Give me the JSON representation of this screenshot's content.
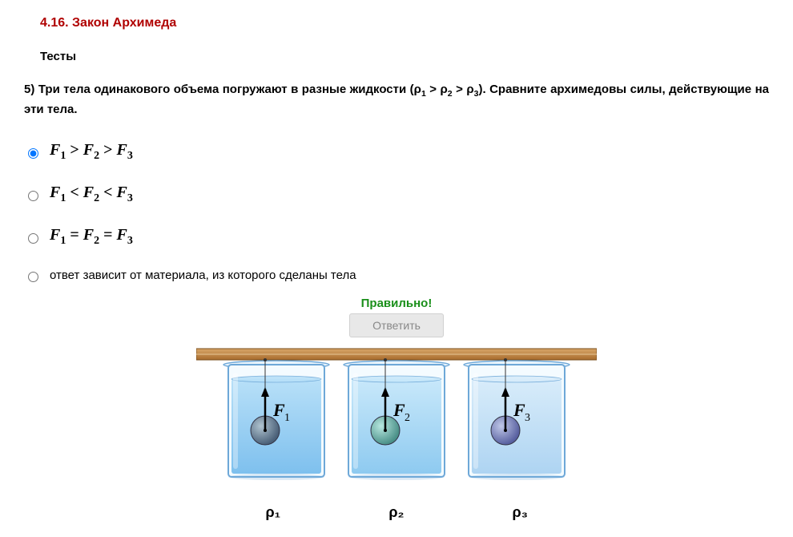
{
  "section_title": "4.16. Закон Архимеда",
  "tests_label": "Тесты",
  "question_num": "5)",
  "question_text_pre": "Три тела одинакового объема погружают в разные жидкости (",
  "question_rho": "ρ",
  "question_text_mid1": " > ",
  "question_text_mid2": " > ",
  "question_text_post": "). Сравните архимедовы силы, действующие на эти тела.",
  "options": {
    "opt1": {
      "F": "F",
      "cmp1": " > ",
      "cmp2": " > "
    },
    "opt2": {
      "F": "F",
      "cmp1": " < ",
      "cmp2": " < "
    },
    "opt3": {
      "F": "F",
      "cmp1": " = ",
      "cmp2": " = "
    },
    "opt4": "ответ зависит от материала, из которого сделаны тела"
  },
  "selected_index": 0,
  "feedback": "Правильно!",
  "feedback_color": "#1a8f1a",
  "answer_button": "Ответить",
  "diagram": {
    "table_color_top": "#d8a668",
    "table_color_bot": "#a86c2e",
    "table_edge": "#7a4c1a",
    "beaker_stroke": "#6ea8d8",
    "beakers": [
      {
        "liquid_top": "#b8e0f8",
        "liquid_bot": "#7ec0ee",
        "ball_light": "#b0c4d0",
        "ball_dark": "#4a6078",
        "label": "ρ₁",
        "force": "F",
        "fsub": "1"
      },
      {
        "liquid_top": "#c8e8fa",
        "liquid_bot": "#8ecaf0",
        "ball_light": "#b8e8e0",
        "ball_dark": "#4a9088",
        "label": "ρ₂",
        "force": "F",
        "fsub": "2"
      },
      {
        "liquid_top": "#d8ecfa",
        "liquid_bot": "#aed4f2",
        "ball_light": "#c0c8e8",
        "ball_dark": "#5860a0",
        "label": "ρ₃",
        "force": "F",
        "fsub": "3"
      }
    ]
  }
}
